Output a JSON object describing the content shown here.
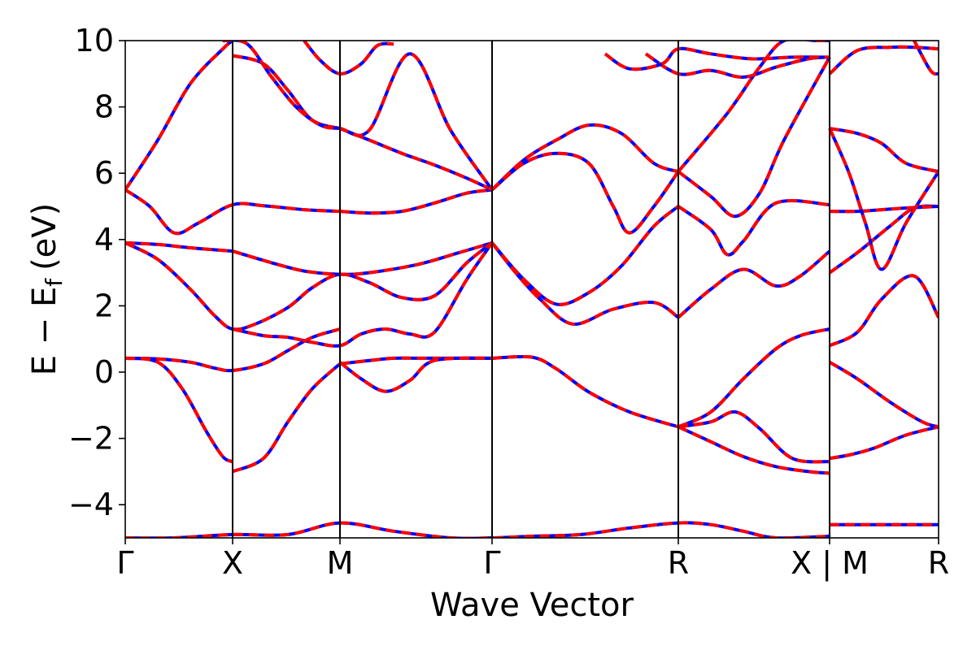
{
  "chart_data": {
    "type": "line",
    "xlabel": "Wave Vector",
    "ylabel": "E − E",
    "ylabel_subscript": "f",
    "ylabel_unit": "(eV)",
    "ylim": [
      -5,
      10
    ],
    "yticks": [
      -4,
      -2,
      0,
      2,
      4,
      6,
      8,
      10
    ],
    "ytick_labels": [
      "−4",
      "−2",
      "0",
      "2",
      "4",
      "6",
      "8",
      "10"
    ],
    "xlim": [
      0,
      1
    ],
    "kpoints": [
      {
        "label": "Γ",
        "x": 0.0
      },
      {
        "label": "X",
        "x": 0.132
      },
      {
        "label": "M",
        "x": 0.264
      },
      {
        "label": "Γ",
        "x": 0.451
      },
      {
        "label": "R",
        "x": 0.68
      },
      {
        "label": "X | M",
        "x": 0.866
      },
      {
        "label": "R",
        "x": 1.0
      }
    ],
    "series_styles": [
      {
        "color": "#0000ff",
        "dash": "solid"
      },
      {
        "color": "#ff0000",
        "dash": "dashed"
      }
    ],
    "series": [
      {
        "x": [
          0.0,
          0.03,
          0.06,
          0.09,
          0.132,
          0.17,
          0.22,
          0.264
        ],
        "y": [
          5.5,
          5.0,
          4.2,
          4.5,
          5.05,
          5.02,
          4.9,
          4.85
        ]
      },
      {
        "x": [
          0.264,
          0.3,
          0.34,
          0.38,
          0.42,
          0.451
        ],
        "y": [
          4.85,
          4.8,
          4.85,
          5.1,
          5.4,
          5.5
        ]
      },
      {
        "x": [
          0.0,
          0.04,
          0.08,
          0.132
        ],
        "y": [
          3.9,
          3.85,
          3.75,
          3.65
        ]
      },
      {
        "x": [
          0.132,
          0.18,
          0.22,
          0.264,
          0.3,
          0.36,
          0.41,
          0.451
        ],
        "y": [
          3.65,
          3.3,
          3.05,
          2.95,
          3.0,
          3.25,
          3.6,
          3.9
        ]
      },
      {
        "x": [
          0.0,
          0.04,
          0.08,
          0.11,
          0.132,
          0.16,
          0.2,
          0.23,
          0.264,
          0.3,
          0.34,
          0.38,
          0.42,
          0.451
        ],
        "y": [
          3.9,
          3.4,
          2.5,
          1.7,
          1.3,
          1.45,
          1.95,
          2.55,
          2.95,
          2.7,
          2.25,
          2.3,
          3.3,
          3.9
        ]
      },
      {
        "x": [
          0.132,
          0.17,
          0.2,
          0.23,
          0.264,
          0.29,
          0.32,
          0.35,
          0.38,
          0.42,
          0.451
        ],
        "y": [
          1.3,
          1.1,
          1.05,
          0.9,
          0.8,
          1.15,
          1.3,
          1.15,
          1.2,
          2.8,
          3.9
        ]
      },
      {
        "x": [
          0.0,
          0.04,
          0.08,
          0.11,
          0.132,
          0.17,
          0.2,
          0.23,
          0.264
        ],
        "y": [
          0.42,
          0.4,
          0.3,
          0.12,
          0.05,
          0.25,
          0.65,
          1.05,
          1.3
        ]
      },
      {
        "x": [
          0.0,
          0.04,
          0.07,
          0.1,
          0.12,
          0.132
        ],
        "y": [
          0.42,
          0.3,
          -0.5,
          -1.8,
          -2.55,
          -2.7
        ]
      },
      {
        "x": [
          0.132,
          0.17,
          0.2,
          0.23,
          0.264
        ],
        "y": [
          -3.0,
          -2.6,
          -1.5,
          -0.5,
          0.25
        ]
      },
      {
        "x": [
          0.264,
          0.3,
          0.33,
          0.36,
          0.4,
          0.451
        ],
        "y": [
          0.25,
          0.35,
          0.42,
          0.42,
          0.42,
          0.42
        ]
      },
      {
        "x": [
          0.264,
          0.29,
          0.32,
          0.35,
          0.38,
          0.451
        ],
        "y": [
          0.3,
          -0.2,
          -0.58,
          -0.25,
          0.35,
          0.42
        ]
      },
      {
        "x": [
          0.451,
          0.5,
          0.53,
          0.57,
          0.62,
          0.68
        ],
        "y": [
          0.42,
          0.45,
          0.1,
          -0.6,
          -1.2,
          -1.65
        ]
      },
      {
        "x": [
          0.451,
          0.48,
          0.51,
          0.55,
          0.6,
          0.65,
          0.68
        ],
        "y": [
          3.9,
          3.0,
          2.2,
          1.45,
          1.9,
          2.1,
          1.65
        ]
      },
      {
        "x": [
          0.451,
          0.49,
          0.53,
          0.57,
          0.61,
          0.65,
          0.68
        ],
        "y": [
          3.9,
          2.8,
          2.05,
          2.4,
          3.2,
          4.4,
          5.0
        ]
      },
      {
        "x": [
          0.451,
          0.49,
          0.53,
          0.57,
          0.6,
          0.62,
          0.65,
          0.68
        ],
        "y": [
          5.5,
          6.3,
          6.6,
          6.3,
          5.0,
          4.2,
          5.0,
          6.05
        ]
      },
      {
        "x": [
          0.451,
          0.49,
          0.53,
          0.57,
          0.61,
          0.65,
          0.68
        ],
        "y": [
          5.5,
          6.4,
          7.0,
          7.45,
          7.2,
          6.3,
          6.05
        ]
      },
      {
        "x": [
          0.0,
          0.04,
          0.08,
          0.12,
          0.132
        ],
        "y": [
          5.5,
          7.0,
          8.7,
          9.75,
          10.0
        ]
      },
      {
        "x": [
          0.132,
          0.17,
          0.2,
          0.23,
          0.264
        ],
        "y": [
          9.55,
          9.3,
          8.5,
          7.6,
          7.35
        ]
      },
      {
        "x": [
          0.264,
          0.3,
          0.34,
          0.38,
          0.42,
          0.451
        ],
        "y": [
          7.35,
          7.0,
          6.6,
          6.25,
          5.85,
          5.5
        ]
      },
      {
        "x": [
          0.12,
          0.15,
          0.18,
          0.21,
          0.24,
          0.264,
          0.3,
          0.35,
          0.4,
          0.451
        ],
        "y": [
          10.0,
          9.9,
          8.9,
          8.0,
          7.45,
          7.35,
          7.3,
          9.6,
          7.3,
          5.5
        ]
      },
      {
        "x": [
          0.22,
          0.24,
          0.264,
          0.29,
          0.31,
          0.33
        ],
        "y": [
          10.0,
          9.4,
          9.0,
          9.3,
          9.85,
          9.9
        ]
      },
      {
        "x": [
          0.68,
          0.72,
          0.75,
          0.78,
          0.82,
          0.866
        ],
        "y": [
          -1.65,
          -1.5,
          -1.2,
          -1.7,
          -2.6,
          -2.7
        ]
      },
      {
        "x": [
          0.68,
          0.72,
          0.76,
          0.8,
          0.83,
          0.866
        ],
        "y": [
          -1.65,
          -1.2,
          -0.2,
          0.7,
          1.1,
          1.3
        ]
      },
      {
        "x": [
          0.68,
          0.72,
          0.76,
          0.8,
          0.84,
          0.866
        ],
        "y": [
          -1.65,
          -2.1,
          -2.55,
          -2.85,
          -3.0,
          -3.05
        ]
      },
      {
        "x": [
          0.68,
          0.72,
          0.76,
          0.8,
          0.83,
          0.866
        ],
        "y": [
          1.65,
          2.5,
          3.1,
          2.6,
          2.9,
          3.65
        ]
      },
      {
        "x": [
          0.68,
          0.72,
          0.74,
          0.76,
          0.8,
          0.866
        ],
        "y": [
          5.0,
          4.3,
          3.55,
          3.95,
          5.1,
          5.05
        ]
      },
      {
        "x": [
          0.68,
          0.72,
          0.75,
          0.78,
          0.81,
          0.866
        ],
        "y": [
          6.05,
          5.3,
          4.7,
          5.4,
          7.0,
          9.5
        ]
      },
      {
        "x": [
          0.68,
          0.74,
          0.78,
          0.81,
          0.85,
          0.866
        ],
        "y": [
          6.05,
          7.8,
          9.2,
          10.0,
          10.0,
          10.0
        ]
      },
      {
        "x": [
          0.64,
          0.68,
          0.72,
          0.76,
          0.8,
          0.84,
          0.866
        ],
        "y": [
          9.6,
          9.0,
          9.1,
          8.9,
          9.2,
          9.45,
          9.5
        ]
      },
      {
        "x": [
          0.59,
          0.62,
          0.66,
          0.68,
          0.72,
          0.77,
          0.82,
          0.866
        ],
        "y": [
          9.6,
          9.15,
          9.3,
          9.75,
          9.6,
          9.45,
          9.5,
          9.5
        ]
      },
      {
        "x": [
          0.866,
          0.89,
          0.92,
          0.96,
          1.0
        ],
        "y": [
          -2.6,
          -2.5,
          -2.3,
          -1.9,
          -1.65
        ]
      },
      {
        "x": [
          0.866,
          0.9,
          0.94,
          0.98,
          1.0
        ],
        "y": [
          0.3,
          -0.2,
          -0.9,
          -1.5,
          -1.65
        ]
      },
      {
        "x": [
          0.866,
          0.9,
          0.93,
          0.97,
          1.0
        ],
        "y": [
          0.8,
          1.2,
          2.2,
          2.9,
          1.65
        ]
      },
      {
        "x": [
          0.866,
          0.9,
          0.94,
          0.97,
          1.0
        ],
        "y": [
          3.0,
          3.6,
          4.4,
          4.95,
          5.0
        ]
      },
      {
        "x": [
          0.866,
          0.9,
          0.93,
          0.96,
          1.0
        ],
        "y": [
          4.85,
          4.85,
          4.9,
          4.95,
          5.0
        ]
      },
      {
        "x": [
          0.866,
          0.9,
          0.93,
          0.96,
          1.0
        ],
        "y": [
          7.35,
          7.2,
          6.9,
          6.3,
          6.05
        ]
      },
      {
        "x": [
          0.866,
          0.89,
          0.91,
          0.93,
          0.96,
          1.0
        ],
        "y": [
          7.35,
          6.0,
          4.5,
          3.1,
          4.5,
          6.05
        ]
      },
      {
        "x": [
          0.866,
          0.9,
          0.94,
          0.97,
          1.0
        ],
        "y": [
          9.0,
          9.7,
          9.8,
          9.8,
          9.75
        ]
      },
      {
        "x": [
          0.97,
          0.99,
          1.0
        ],
        "y": [
          10.0,
          9.1,
          9.0
        ]
      },
      {
        "x": [
          0.866,
          0.93,
          1.0
        ],
        "y": [
          -4.6,
          -4.6,
          -4.6
        ]
      },
      {
        "x": [
          0.0,
          0.06,
          0.132,
          0.2,
          0.264,
          0.33,
          0.4,
          0.451,
          0.5,
          0.56,
          0.62,
          0.68,
          0.72,
          0.76,
          0.8,
          0.866
        ],
        "y": [
          -5.0,
          -5.0,
          -4.9,
          -4.9,
          -4.55,
          -4.8,
          -5.0,
          -5.0,
          -4.95,
          -4.9,
          -4.7,
          -4.55,
          -4.6,
          -4.8,
          -5.0,
          -4.95
        ]
      }
    ]
  }
}
